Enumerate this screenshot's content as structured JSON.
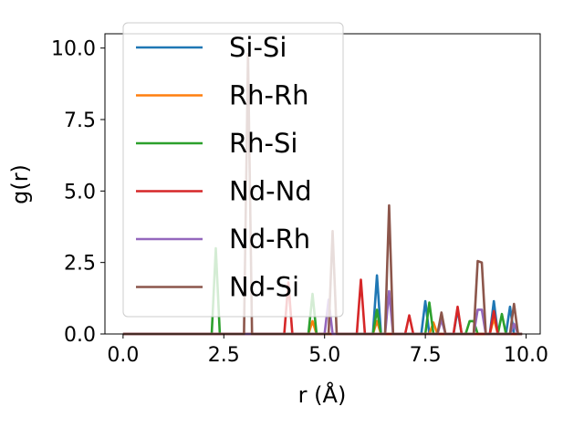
{
  "chart_data": {
    "type": "line",
    "title": "",
    "xlabel": "r (Å)",
    "ylabel": "g(r)",
    "xlim": [
      -0.45,
      10.35
    ],
    "ylim": [
      0,
      10.5
    ],
    "xticks": [
      0.0,
      2.5,
      5.0,
      7.5,
      10.0
    ],
    "xtick_labels": [
      "0.0",
      "2.5",
      "5.0",
      "7.5",
      "10.0"
    ],
    "yticks": [
      0.0,
      2.5,
      5.0,
      7.5,
      10.0
    ],
    "ytick_labels": [
      "0.0",
      "2.5",
      "5.0",
      "7.5",
      "10.0"
    ],
    "grid": false,
    "legend_position": "upper-left",
    "series": [
      {
        "name": "Si-Si",
        "color": "#1f77b4",
        "points": [
          [
            0,
            0
          ],
          [
            6.2,
            0
          ],
          [
            6.3,
            2.05
          ],
          [
            6.4,
            0
          ],
          [
            7.4,
            0
          ],
          [
            7.5,
            1.15
          ],
          [
            7.6,
            0
          ],
          [
            8.2,
            0
          ],
          [
            8.3,
            0.85
          ],
          [
            8.4,
            0
          ],
          [
            9.1,
            0
          ],
          [
            9.2,
            1.15
          ],
          [
            9.3,
            0
          ],
          [
            9.5,
            0
          ],
          [
            9.6,
            0.95
          ],
          [
            9.7,
            0
          ],
          [
            9.9,
            0
          ]
        ]
      },
      {
        "name": "Rh-Rh",
        "color": "#ff7f0e",
        "points": [
          [
            0,
            0
          ],
          [
            4.6,
            0
          ],
          [
            4.7,
            0.45
          ],
          [
            4.8,
            0
          ],
          [
            6.2,
            0
          ],
          [
            6.3,
            0.45
          ],
          [
            6.4,
            0
          ],
          [
            7.6,
            0
          ],
          [
            7.7,
            0.4
          ],
          [
            7.8,
            0
          ],
          [
            9.1,
            0
          ],
          [
            9.2,
            0.55
          ],
          [
            9.3,
            0
          ],
          [
            9.9,
            0
          ]
        ]
      },
      {
        "name": "Rh-Si",
        "color": "#2ca02c",
        "points": [
          [
            0,
            0
          ],
          [
            2.2,
            0
          ],
          [
            2.3,
            3.0
          ],
          [
            2.4,
            0
          ],
          [
            4.6,
            0
          ],
          [
            4.7,
            1.4
          ],
          [
            4.8,
            0
          ],
          [
            6.2,
            0
          ],
          [
            6.3,
            0.85
          ],
          [
            6.4,
            0
          ],
          [
            7.5,
            0
          ],
          [
            7.6,
            1.1
          ],
          [
            7.7,
            0
          ],
          [
            8.5,
            0
          ],
          [
            8.6,
            0.45
          ],
          [
            8.7,
            0.45
          ],
          [
            8.8,
            0
          ],
          [
            9.3,
            0
          ],
          [
            9.4,
            0.7
          ],
          [
            9.5,
            0
          ],
          [
            9.9,
            0
          ]
        ]
      },
      {
        "name": "Nd-Nd",
        "color": "#d62728",
        "points": [
          [
            0,
            0
          ],
          [
            4.0,
            0
          ],
          [
            4.1,
            1.8
          ],
          [
            4.2,
            0
          ],
          [
            5.8,
            0
          ],
          [
            5.9,
            1.9
          ],
          [
            6.0,
            0
          ],
          [
            7.0,
            0
          ],
          [
            7.1,
            0.65
          ],
          [
            7.2,
            0
          ],
          [
            8.2,
            0
          ],
          [
            8.3,
            0.95
          ],
          [
            8.4,
            0
          ],
          [
            9.1,
            0
          ],
          [
            9.2,
            0.8
          ],
          [
            9.3,
            0
          ],
          [
            9.9,
            0
          ]
        ]
      },
      {
        "name": "Nd-Rh",
        "color": "#9467bd",
        "points": [
          [
            0,
            0
          ],
          [
            5.0,
            0
          ],
          [
            5.1,
            1.2
          ],
          [
            5.2,
            0
          ],
          [
            6.5,
            0
          ],
          [
            6.6,
            1.5
          ],
          [
            6.7,
            0
          ],
          [
            7.8,
            0
          ],
          [
            7.9,
            0.5
          ],
          [
            8.0,
            0
          ],
          [
            8.7,
            0
          ],
          [
            8.8,
            0.85
          ],
          [
            8.9,
            0.85
          ],
          [
            9.0,
            0
          ],
          [
            9.6,
            0
          ],
          [
            9.7,
            0.35
          ],
          [
            9.8,
            0
          ],
          [
            9.9,
            0
          ]
        ]
      },
      {
        "name": "Nd-Si",
        "color": "#8c564b",
        "points": [
          [
            0,
            0
          ],
          [
            3.0,
            0
          ],
          [
            3.1,
            9.8
          ],
          [
            3.2,
            0
          ],
          [
            5.1,
            0
          ],
          [
            5.2,
            3.6
          ],
          [
            5.3,
            0
          ],
          [
            6.5,
            0
          ],
          [
            6.6,
            4.5
          ],
          [
            6.7,
            0
          ],
          [
            7.8,
            0
          ],
          [
            7.9,
            0.75
          ],
          [
            8.0,
            0
          ],
          [
            8.7,
            0
          ],
          [
            8.8,
            2.55
          ],
          [
            8.9,
            2.5
          ],
          [
            9.0,
            0
          ],
          [
            9.6,
            0
          ],
          [
            9.7,
            1.05
          ],
          [
            9.8,
            0
          ],
          [
            9.9,
            0
          ]
        ]
      }
    ]
  }
}
